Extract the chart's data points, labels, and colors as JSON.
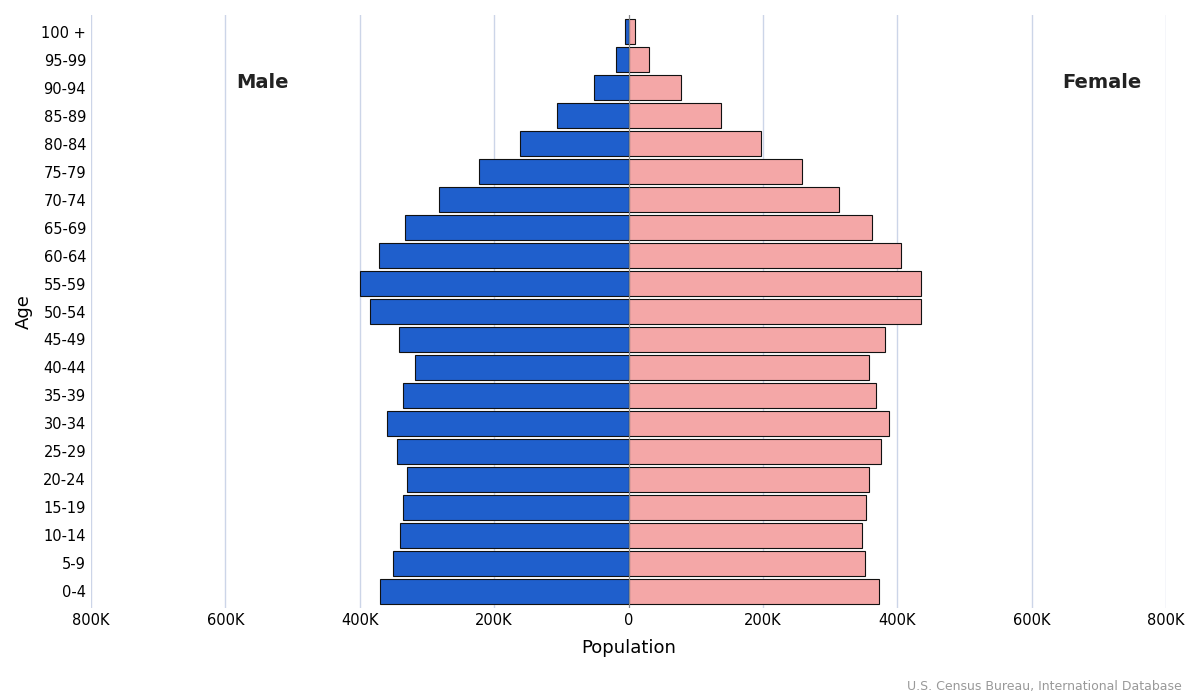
{
  "age_groups": [
    "0-4",
    "5-9",
    "10-14",
    "15-19",
    "20-24",
    "25-29",
    "30-34",
    "35-39",
    "40-44",
    "45-49",
    "50-54",
    "55-59",
    "60-64",
    "65-69",
    "70-74",
    "75-79",
    "80-84",
    "85-89",
    "90-94",
    "95-99",
    "100 +"
  ],
  "male": [
    370000,
    350000,
    340000,
    335000,
    330000,
    345000,
    360000,
    335000,
    318000,
    342000,
    385000,
    400000,
    372000,
    332000,
    282000,
    222000,
    162000,
    107000,
    52000,
    19000,
    5000
  ],
  "female": [
    372000,
    352000,
    348000,
    353000,
    358000,
    376000,
    387000,
    368000,
    358000,
    382000,
    435000,
    435000,
    406000,
    362000,
    313000,
    258000,
    197000,
    138000,
    78000,
    31000,
    9000
  ],
  "male_color": "#1f5fcc",
  "female_color": "#f4a7a7",
  "edge_color": "#111111",
  "background_color": "#ffffff",
  "grid_color": "#ccd5e8",
  "xlabel": "Population",
  "ylabel": "Age",
  "male_label": "Male",
  "female_label": "Female",
  "source_text": "U.S. Census Bureau, International Database",
  "xlim": 800000,
  "tick_values": [
    0,
    200000,
    400000,
    600000,
    800000
  ]
}
